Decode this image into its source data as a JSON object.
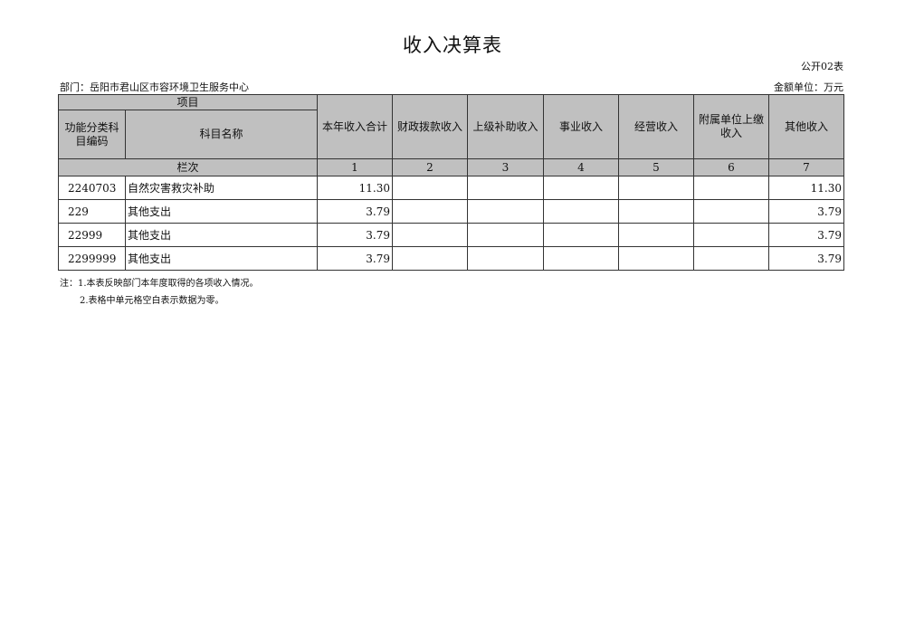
{
  "title": "收入决算表",
  "form_no": "公开02表",
  "department": "部门：岳阳市君山区市容环境卫生服务中心",
  "unit": "金额单位：万元",
  "header": {
    "item": "项目",
    "code": "功能分类科目编码",
    "name": "科目名称",
    "columns": [
      "本年收入合计",
      "财政拨款收入",
      "上级补助收入",
      "事业收入",
      "经营收入",
      "附属单位上缴收入",
      "其他收入"
    ],
    "row_index_label": "栏次",
    "row_index": [
      "1",
      "2",
      "3",
      "4",
      "5",
      "6",
      "7"
    ]
  },
  "rows": [
    {
      "code": "2240703",
      "name": "自然灾害救灾补助",
      "values": [
        "11.30",
        "",
        "",
        "",
        "",
        "",
        "11.30"
      ]
    },
    {
      "code": "229",
      "name": "其他支出",
      "values": [
        "3.79",
        "",
        "",
        "",
        "",
        "",
        "3.79"
      ]
    },
    {
      "code": "22999",
      "name": "其他支出",
      "values": [
        "3.79",
        "",
        "",
        "",
        "",
        "",
        "3.79"
      ]
    },
    {
      "code": "2299999",
      "name": "其他支出",
      "values": [
        "3.79",
        "",
        "",
        "",
        "",
        "",
        "3.79"
      ]
    }
  ],
  "notes": [
    "注：1.本表反映部门本年度取得的各项收入情况。",
    "2.表格中单元格空白表示数据为零。"
  ]
}
